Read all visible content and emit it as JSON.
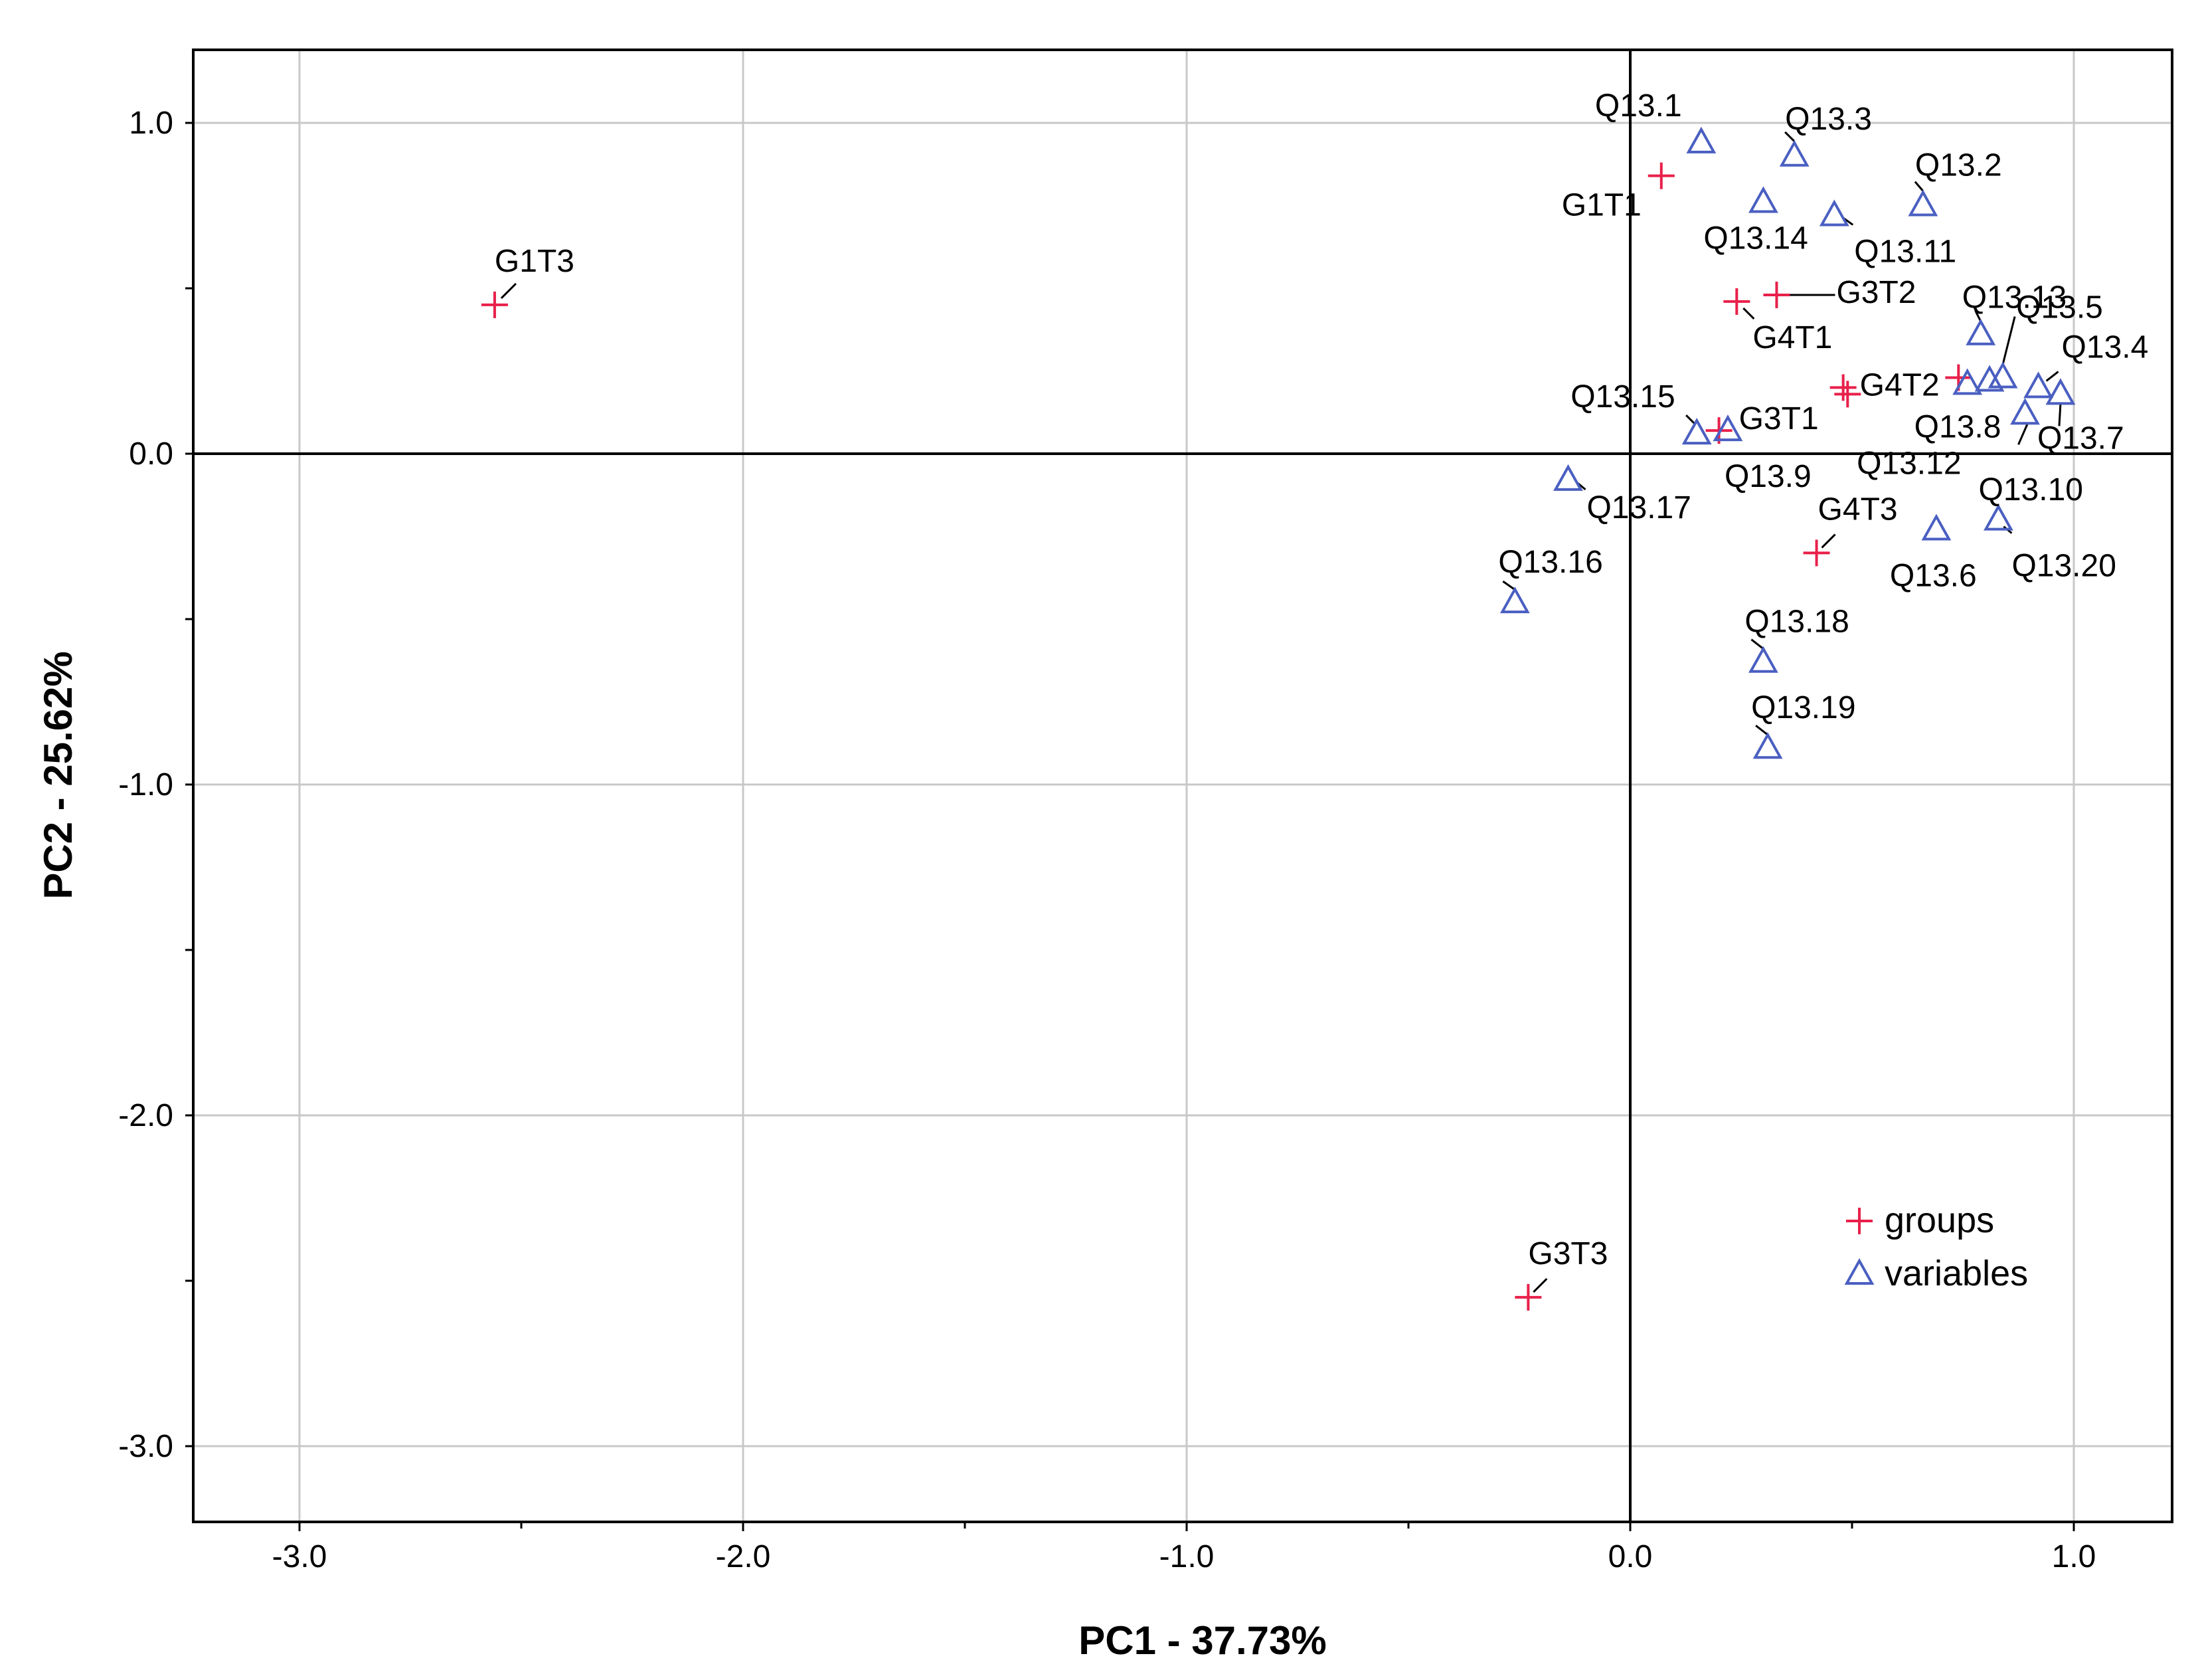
{
  "chart_data": {
    "type": "scatter",
    "xlabel": "PC1 - 37.73%",
    "ylabel": "PC2 - 25.62%",
    "xlim": [
      -3.22,
      1.22
    ],
    "ylim": [
      -3.22,
      1.22
    ],
    "xticks": [
      -3.0,
      -2.0,
      -1.0,
      0.0,
      1.0
    ],
    "xtick_labels": [
      "-3.0",
      "-2.0",
      "-1.0",
      "0.0",
      "1.0"
    ],
    "yticks": [
      1.0,
      0.0,
      -1.0,
      -2.0,
      -3.0
    ],
    "ytick_labels": [
      "1.0",
      "0.0",
      "-1.0",
      "-2.0",
      "-3.0"
    ],
    "grid": true,
    "legend_position": "bottom-right",
    "colors": {
      "groups": "#e8204a",
      "variables": "#4a5fc1",
      "grid": "#c8c8c8",
      "axis": "#000000"
    },
    "series": [
      {
        "name": "groups",
        "marker": "plus",
        "points": [
          {
            "label": "G1T1",
            "x": 0.07,
            "y": 0.84
          },
          {
            "label": "G1T3",
            "x": -2.56,
            "y": 0.45
          },
          {
            "label": "G3T2",
            "x": 0.33,
            "y": 0.48
          },
          {
            "label": "G4T1",
            "x": 0.24,
            "y": 0.46
          },
          {
            "label": "G4T2",
            "x": 0.48,
            "y": 0.2
          },
          {
            "label": "",
            "x": 0.49,
            "y": 0.18
          },
          {
            "label": "",
            "x": 0.74,
            "y": 0.23
          },
          {
            "label": "G3T1",
            "x": 0.2,
            "y": 0.07
          },
          {
            "label": "G4T3",
            "x": 0.42,
            "y": -0.3
          },
          {
            "label": "G3T3",
            "x": -0.23,
            "y": -2.55
          }
        ]
      },
      {
        "name": "variables",
        "marker": "triangle",
        "points": [
          {
            "label": "Q13.1",
            "x": 0.16,
            "y": 0.94
          },
          {
            "label": "Q13.3",
            "x": 0.37,
            "y": 0.9
          },
          {
            "label": "Q13.2",
            "x": 0.66,
            "y": 0.75
          },
          {
            "label": "Q13.14",
            "x": 0.3,
            "y": 0.76
          },
          {
            "label": "Q13.11",
            "x": 0.46,
            "y": 0.72
          },
          {
            "label": "Q13.5",
            "x": 0.84,
            "y": 0.23
          },
          {
            "label": "Q13.13",
            "x": 0.79,
            "y": 0.36
          },
          {
            "label": "Q13.4",
            "x": 0.92,
            "y": 0.2
          },
          {
            "label": "Q13.8",
            "x": 0.76,
            "y": 0.21
          },
          {
            "label": "Q13.12",
            "x": 0.81,
            "y": 0.22
          },
          {
            "label": "Q13.7",
            "x": 0.97,
            "y": 0.18
          },
          {
            "label": "Q13.10",
            "x": 0.89,
            "y": 0.12
          },
          {
            "label": "Q13.15",
            "x": 0.15,
            "y": 0.06
          },
          {
            "label": "Q13.9",
            "x": 0.22,
            "y": 0.07
          },
          {
            "label": "Q13.17",
            "x": -0.14,
            "y": -0.08
          },
          {
            "label": "Q13.6",
            "x": 0.69,
            "y": -0.23
          },
          {
            "label": "Q13.20",
            "x": 0.83,
            "y": -0.2
          },
          {
            "label": "Q13.16",
            "x": -0.26,
            "y": -0.45
          },
          {
            "label": "Q13.18",
            "x": 0.3,
            "y": -0.63
          },
          {
            "label": "Q13.19",
            "x": 0.31,
            "y": -0.89
          }
        ]
      }
    ]
  }
}
